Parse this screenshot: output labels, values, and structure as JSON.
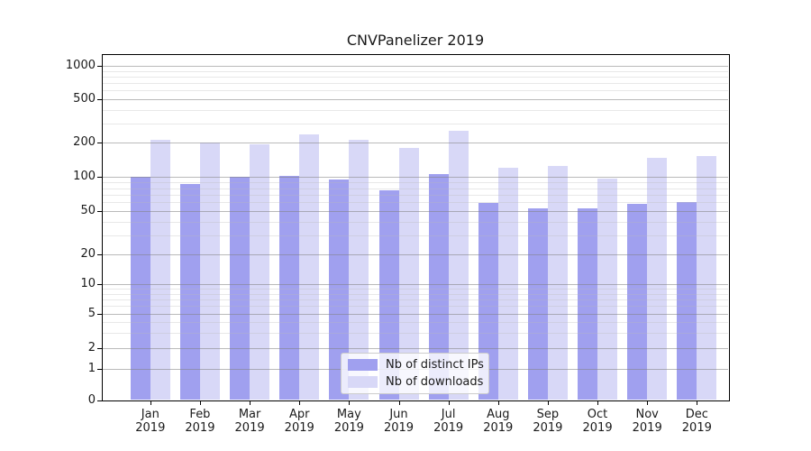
{
  "chart_data": {
    "type": "bar",
    "title": "CNVPanelizer 2019",
    "categories": [
      "Jan 2019",
      "Feb 2019",
      "Mar 2019",
      "Apr 2019",
      "May 2019",
      "Jun 2019",
      "Jul 2019",
      "Aug 2019",
      "Sep 2019",
      "Oct 2019",
      "Nov 2019",
      "Dec 2019"
    ],
    "months": [
      "Jan",
      "Feb",
      "Mar",
      "Apr",
      "May",
      "Jun",
      "Jul",
      "Aug",
      "Sep",
      "Oct",
      "Nov",
      "Dec"
    ],
    "year": "2019",
    "series": [
      {
        "name": "Nb of distinct IPs",
        "color": "#a0a0ef",
        "values": [
          100,
          87,
          100,
          102,
          96,
          76,
          106,
          59,
          53,
          53,
          58,
          60
        ]
      },
      {
        "name": "Nb of downloads",
        "color": "#d8d8f7",
        "values": [
          215,
          203,
          195,
          237,
          214,
          180,
          258,
          120,
          126,
          97,
          148,
          153
        ]
      }
    ],
    "y_ticks": [
      0,
      1,
      2,
      5,
      10,
      20,
      50,
      100,
      200,
      500,
      1000
    ],
    "y_minor_gridlines": [
      3,
      4,
      6,
      7,
      8,
      9,
      30,
      40,
      60,
      70,
      80,
      90,
      300,
      400,
      600,
      700,
      800,
      900
    ],
    "y_scale": "log above 1, linear 0-1",
    "ylim": [
      0,
      1280
    ],
    "grid": true,
    "legend_position": "lower center",
    "bar_grouping": "paired, touching, centered on month tick"
  }
}
